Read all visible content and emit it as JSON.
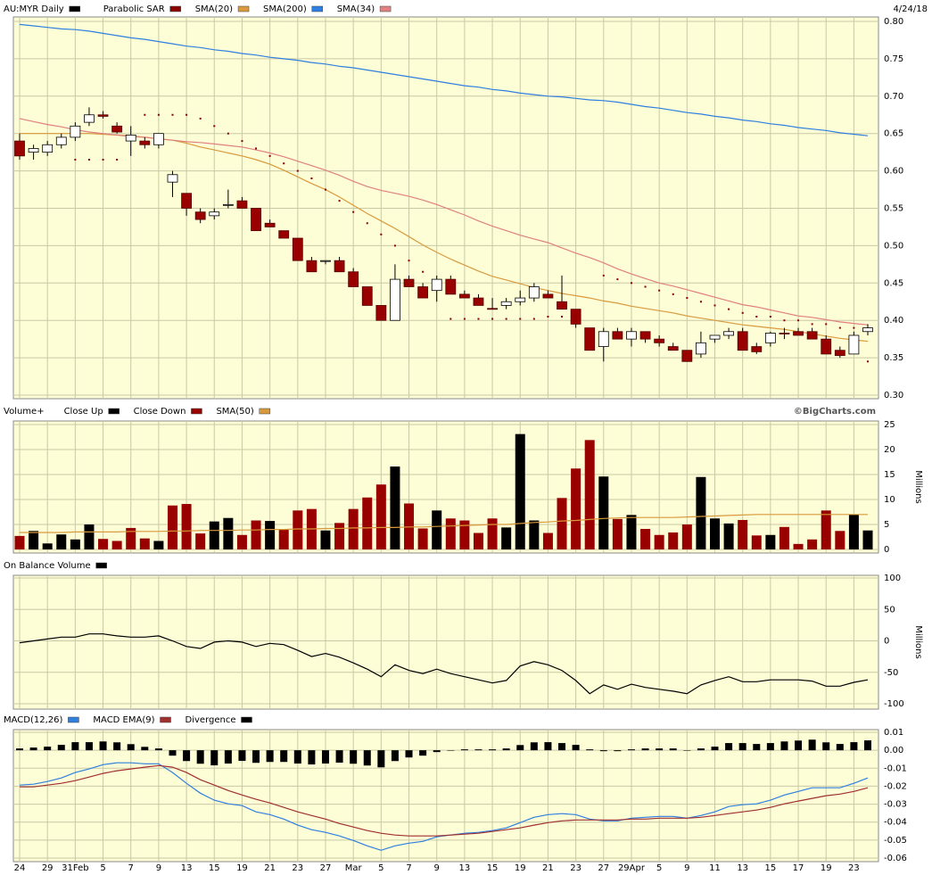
{
  "chart_data": [
    {
      "type": "candlestick",
      "title": "AU:MYR Daily",
      "date": "4/24/18",
      "color": "#000000",
      "down_color": "#990000",
      "open": [
        0.64,
        0.625,
        0.625,
        0.635,
        0.645,
        0.665,
        0.675,
        0.66,
        0.64,
        0.64,
        0.635,
        0.585,
        0.57,
        0.545,
        0.54,
        0.554,
        0.56,
        0.55,
        0.53,
        0.52,
        0.51,
        0.48,
        0.479,
        0.48,
        0.465,
        0.445,
        0.42,
        0.4,
        0.455,
        0.445,
        0.44,
        0.455,
        0.435,
        0.43,
        0.416,
        0.42,
        0.425,
        0.43,
        0.435,
        0.425,
        0.415,
        0.39,
        0.365,
        0.385,
        0.375,
        0.385,
        0.375,
        0.365,
        0.36,
        0.355,
        0.375,
        0.38,
        0.385,
        0.365,
        0.37,
        0.383,
        0.385,
        0.385,
        0.375,
        0.36,
        0.355,
        0.385
      ],
      "high": [
        0.65,
        0.635,
        0.64,
        0.65,
        0.665,
        0.685,
        0.68,
        0.665,
        0.66,
        0.645,
        0.65,
        0.6,
        0.57,
        0.55,
        0.55,
        0.575,
        0.565,
        0.55,
        0.535,
        0.52,
        0.51,
        0.485,
        0.48,
        0.485,
        0.47,
        0.445,
        0.42,
        0.475,
        0.46,
        0.45,
        0.46,
        0.46,
        0.44,
        0.435,
        0.43,
        0.43,
        0.44,
        0.45,
        0.44,
        0.46,
        0.415,
        0.39,
        0.39,
        0.39,
        0.39,
        0.385,
        0.38,
        0.37,
        0.36,
        0.385,
        0.38,
        0.39,
        0.39,
        0.37,
        0.385,
        0.39,
        0.39,
        0.39,
        0.38,
        0.365,
        0.385,
        0.395
      ],
      "low": [
        0.615,
        0.615,
        0.62,
        0.63,
        0.64,
        0.66,
        0.67,
        0.65,
        0.62,
        0.63,
        0.63,
        0.565,
        0.54,
        0.53,
        0.535,
        0.55,
        0.55,
        0.52,
        0.525,
        0.51,
        0.48,
        0.465,
        0.475,
        0.465,
        0.445,
        0.42,
        0.4,
        0.4,
        0.445,
        0.43,
        0.425,
        0.435,
        0.43,
        0.42,
        0.415,
        0.415,
        0.42,
        0.425,
        0.43,
        0.415,
        0.39,
        0.36,
        0.345,
        0.375,
        0.365,
        0.37,
        0.365,
        0.36,
        0.345,
        0.35,
        0.37,
        0.375,
        0.36,
        0.355,
        0.365,
        0.375,
        0.38,
        0.375,
        0.355,
        0.35,
        0.355,
        0.38
      ],
      "close": [
        0.62,
        0.63,
        0.635,
        0.645,
        0.66,
        0.675,
        0.673,
        0.652,
        0.648,
        0.635,
        0.65,
        0.595,
        0.55,
        0.535,
        0.545,
        0.555,
        0.55,
        0.52,
        0.525,
        0.51,
        0.48,
        0.465,
        0.48,
        0.465,
        0.445,
        0.42,
        0.4,
        0.455,
        0.445,
        0.43,
        0.455,
        0.435,
        0.43,
        0.42,
        0.415,
        0.425,
        0.43,
        0.445,
        0.43,
        0.415,
        0.395,
        0.36,
        0.385,
        0.375,
        0.385,
        0.375,
        0.37,
        0.36,
        0.345,
        0.37,
        0.38,
        0.385,
        0.36,
        0.358,
        0.383,
        0.382,
        0.38,
        0.375,
        0.355,
        0.353,
        0.38,
        0.39
      ],
      "series": [
        {
          "name": "Parabolic SAR",
          "color": "#8b0000",
          "style": "dots",
          "values": [
            null,
            null,
            null,
            null,
            0.615,
            0.615,
            0.615,
            0.615,
            null,
            0.675,
            0.675,
            0.675,
            0.675,
            0.67,
            0.66,
            0.65,
            0.64,
            0.63,
            0.62,
            0.61,
            0.6,
            0.59,
            0.575,
            0.56,
            0.545,
            0.53,
            0.515,
            0.5,
            0.48,
            0.465,
            null,
            0.402,
            0.402,
            0.402,
            0.402,
            0.402,
            0.402,
            0.402,
            0.405,
            0.405,
            0.405,
            null,
            0.46,
            0.455,
            0.45,
            0.445,
            0.44,
            0.435,
            0.43,
            0.425,
            0.42,
            0.415,
            0.41,
            0.405,
            0.405,
            0.4,
            0.4,
            0.395,
            0.395,
            0.39,
            0.39,
            0.345
          ]
        },
        {
          "name": "SMA(20)",
          "color": "#d89a3c",
          "style": "line",
          "values": [
            0.65,
            0.65,
            0.65,
            0.65,
            0.65,
            0.65,
            0.649,
            0.648,
            0.647,
            0.645,
            0.643,
            0.641,
            0.637,
            0.632,
            0.628,
            0.624,
            0.62,
            0.615,
            0.609,
            0.601,
            0.592,
            0.583,
            0.575,
            0.565,
            0.554,
            0.543,
            0.533,
            0.523,
            0.512,
            0.501,
            0.491,
            0.482,
            0.474,
            0.466,
            0.459,
            0.454,
            0.449,
            0.444,
            0.44,
            0.436,
            0.433,
            0.43,
            0.426,
            0.423,
            0.419,
            0.416,
            0.413,
            0.41,
            0.406,
            0.403,
            0.4,
            0.397,
            0.394,
            0.392,
            0.39,
            0.388,
            0.385,
            0.382,
            0.379,
            0.376,
            0.374,
            0.372
          ]
        },
        {
          "name": "SMA(200)",
          "color": "#2f7fe0",
          "style": "line",
          "values": [
            0.796,
            0.794,
            0.792,
            0.79,
            0.789,
            0.787,
            0.784,
            0.781,
            0.778,
            0.776,
            0.773,
            0.77,
            0.767,
            0.765,
            0.762,
            0.76,
            0.757,
            0.755,
            0.752,
            0.75,
            0.748,
            0.745,
            0.743,
            0.74,
            0.738,
            0.735,
            0.732,
            0.729,
            0.726,
            0.723,
            0.72,
            0.717,
            0.714,
            0.712,
            0.709,
            0.707,
            0.704,
            0.702,
            0.7,
            0.699,
            0.697,
            0.695,
            0.694,
            0.692,
            0.689,
            0.686,
            0.684,
            0.681,
            0.678,
            0.676,
            0.673,
            0.671,
            0.668,
            0.666,
            0.663,
            0.661,
            0.658,
            0.656,
            0.654,
            0.651,
            0.649,
            0.647
          ]
        },
        {
          "name": "SMA(34)",
          "color": "#e08080",
          "style": "line",
          "values": [
            0.67,
            0.666,
            0.662,
            0.659,
            0.655,
            0.652,
            0.65,
            0.648,
            0.646,
            0.645,
            0.643,
            0.641,
            0.639,
            0.638,
            0.636,
            0.634,
            0.632,
            0.628,
            0.624,
            0.619,
            0.613,
            0.607,
            0.601,
            0.594,
            0.586,
            0.579,
            0.574,
            0.57,
            0.566,
            0.561,
            0.555,
            0.548,
            0.541,
            0.533,
            0.526,
            0.52,
            0.514,
            0.509,
            0.504,
            0.497,
            0.49,
            0.484,
            0.477,
            0.469,
            0.462,
            0.456,
            0.45,
            0.446,
            0.441,
            0.436,
            0.431,
            0.426,
            0.421,
            0.418,
            0.414,
            0.41,
            0.406,
            0.404,
            0.401,
            0.398,
            0.396,
            0.394
          ]
        }
      ],
      "ylim": [
        0.3,
        0.8
      ],
      "yticks": [
        {
          "value": 0.3,
          "label": "0.30"
        },
        0.35,
        {
          "value": 0.4,
          "label": "0.40"
        },
        0.45,
        {
          "value": 0.5,
          "label": "0.50"
        },
        0.55,
        {
          "value": 0.6,
          "label": "0.60"
        },
        0.65,
        {
          "value": 0.7,
          "label": "0.70"
        },
        0.75,
        {
          "value": 0.8,
          "label": "0.80"
        }
      ],
      "grid": true
    },
    {
      "type": "volume",
      "title": "Volume+",
      "credit": "©BigCharts.com",
      "ylabel": "Millions",
      "values": [
        2.7,
        3.7,
        1.2,
        3.0,
        2.0,
        5.0,
        2.1,
        1.7,
        4.3,
        2.2,
        1.7,
        8.8,
        9.1,
        3.2,
        5.6,
        6.3,
        2.9,
        5.8,
        5.7,
        4.0,
        7.8,
        8.1,
        3.8,
        5.3,
        8.1,
        10.4,
        13.0,
        16.6,
        9.2,
        4.2,
        7.8,
        6.2,
        5.8,
        3.3,
        6.2,
        4.4,
        23.1,
        5.8,
        3.3,
        10.3,
        16.2,
        21.9,
        14.6,
        6.1,
        6.9,
        4.1,
        2.9,
        3.4,
        5.0,
        14.5,
        6.2,
        5.2,
        5.9,
        2.8,
        2.9,
        4.5,
        1.1,
        2.0,
        7.8,
        3.7,
        7.0,
        3.8
      ],
      "series": [
        {
          "name": "Close Up",
          "color": "#000000"
        },
        {
          "name": "Close Down",
          "color": "#990000"
        },
        {
          "name": "SMA(50)",
          "color": "#d89a3c",
          "values": [
            3.4,
            3.4,
            3.4,
            3.4,
            3.5,
            3.5,
            3.5,
            3.5,
            3.6,
            3.6,
            3.6,
            3.7,
            3.7,
            3.8,
            3.8,
            3.8,
            3.9,
            3.9,
            4.0,
            4.0,
            4.1,
            4.1,
            4.2,
            4.2,
            4.3,
            4.3,
            4.4,
            4.4,
            4.5,
            4.5,
            4.6,
            4.7,
            4.8,
            4.9,
            5.0,
            5.0,
            5.2,
            5.4,
            5.5,
            5.7,
            5.8,
            6.0,
            6.2,
            6.3,
            6.4,
            6.4,
            6.4,
            6.4,
            6.5,
            6.6,
            6.7,
            6.8,
            6.9,
            7.0,
            7.0,
            7.0,
            7.0,
            7.0,
            7.0,
            7.0,
            7.0,
            7.0
          ]
        }
      ],
      "ylim": [
        0,
        25
      ],
      "yticks": [
        0,
        5,
        10,
        15,
        20,
        25
      ],
      "grid": true
    },
    {
      "type": "line",
      "title": "On Balance Volume",
      "color": "#000000",
      "ylabel": "Millions",
      "values": [
        -3,
        0,
        3,
        6,
        6,
        11,
        11,
        8,
        6,
        6,
        8,
        0,
        -9,
        -12,
        -2,
        0,
        -2,
        -9,
        -4,
        -6,
        -15,
        -25,
        -20,
        -26,
        -35,
        -45,
        -57,
        -38,
        -47,
        -52,
        -45,
        -52,
        -57,
        -62,
        -67,
        -63,
        -40,
        -33,
        -38,
        -47,
        -63,
        -84,
        -70,
        -77,
        -69,
        -74,
        -77,
        -80,
        -84,
        -70,
        -63,
        -57,
        -65,
        -65,
        -62,
        -62,
        -62,
        -64,
        -72,
        -72,
        -66,
        -62
      ],
      "ylim": [
        -100,
        100
      ],
      "yticks": [
        -100,
        -50,
        0,
        50,
        100
      ],
      "grid": true
    },
    {
      "type": "macd",
      "series": [
        {
          "name": "MACD(12,26)",
          "color": "#2f7fe0",
          "style": "line",
          "values": [
            -0.0194,
            -0.0189,
            -0.0174,
            -0.0154,
            -0.0124,
            -0.0104,
            -0.008,
            -0.007,
            -0.007,
            -0.0075,
            -0.0075,
            -0.0124,
            -0.0184,
            -0.0239,
            -0.0278,
            -0.0298,
            -0.0308,
            -0.0343,
            -0.0358,
            -0.0383,
            -0.0417,
            -0.0442,
            -0.0457,
            -0.0477,
            -0.0502,
            -0.0532,
            -0.0557,
            -0.0532,
            -0.0517,
            -0.0507,
            -0.0482,
            -0.0472,
            -0.0462,
            -0.0457,
            -0.0447,
            -0.0432,
            -0.0403,
            -0.0373,
            -0.0358,
            -0.0353,
            -0.0358,
            -0.0383,
            -0.0393,
            -0.0393,
            -0.0378,
            -0.0373,
            -0.0368,
            -0.0368,
            -0.0378,
            -0.0363,
            -0.0343,
            -0.0313,
            -0.0303,
            -0.0298,
            -0.0278,
            -0.0249,
            -0.0229,
            -0.0209,
            -0.0209,
            -0.0209,
            -0.0184,
            -0.0154
          ]
        },
        {
          "name": "MACD EMA(9)",
          "color": "#a03030",
          "style": "line",
          "values": [
            -0.0204,
            -0.0204,
            -0.0194,
            -0.0184,
            -0.0169,
            -0.0149,
            -0.0129,
            -0.0114,
            -0.0104,
            -0.0094,
            -0.0085,
            -0.0094,
            -0.0124,
            -0.0164,
            -0.0194,
            -0.0224,
            -0.0249,
            -0.0273,
            -0.0293,
            -0.0318,
            -0.0343,
            -0.0363,
            -0.0383,
            -0.0408,
            -0.0427,
            -0.0447,
            -0.0462,
            -0.0472,
            -0.0477,
            -0.0477,
            -0.0477,
            -0.0472,
            -0.0467,
            -0.0462,
            -0.0452,
            -0.0442,
            -0.0432,
            -0.0417,
            -0.0403,
            -0.0393,
            -0.0388,
            -0.0388,
            -0.0388,
            -0.0388,
            -0.0383,
            -0.0383,
            -0.0378,
            -0.0378,
            -0.0378,
            -0.0373,
            -0.0363,
            -0.0353,
            -0.0343,
            -0.0333,
            -0.0318,
            -0.0298,
            -0.0283,
            -0.0268,
            -0.0253,
            -0.0244,
            -0.0229,
            -0.0209
          ]
        },
        {
          "name": "Divergence",
          "color": "#000000",
          "style": "bar",
          "values": [
            0.001,
            0.0015,
            0.002,
            0.003,
            0.0045,
            0.0045,
            0.0049,
            0.0044,
            0.0034,
            0.0019,
            0.001,
            -0.003,
            -0.006,
            -0.0075,
            -0.0084,
            -0.0074,
            -0.0059,
            -0.007,
            -0.0065,
            -0.0065,
            -0.0074,
            -0.0079,
            -0.0074,
            -0.0069,
            -0.0075,
            -0.0085,
            -0.0095,
            -0.006,
            -0.004,
            -0.003,
            -0.001,
            0,
            0.0005,
            0.0005,
            0.0005,
            0.001,
            0.0029,
            0.0044,
            0.0045,
            0.004,
            0.003,
            0.0005,
            -0.0005,
            -0.0005,
            0.0005,
            0.001,
            0.001,
            0.001,
            0,
            0.001,
            0.002,
            0.004,
            0.004,
            0.0035,
            0.004,
            0.0049,
            0.0054,
            0.0059,
            0.0044,
            0.0035,
            0.0045,
            0.0055
          ]
        }
      ],
      "categories": [
        "24",
        null,
        "29",
        null,
        "31Feb",
        null,
        "5",
        null,
        "7",
        null,
        "9",
        null,
        "13",
        null,
        "15",
        null,
        "19",
        null,
        "21",
        null,
        "23",
        null,
        "27",
        null,
        "Mar",
        null,
        "5",
        null,
        "7",
        null,
        "9",
        null,
        "13",
        null,
        "15",
        null,
        "19",
        null,
        "21",
        null,
        "23",
        null,
        "27",
        null,
        "29Apr",
        null,
        "5",
        null,
        "9",
        null,
        "11",
        null,
        "13",
        null,
        "15",
        null,
        "17",
        null,
        "19",
        null,
        "23",
        null
      ],
      "ylim": [
        -0.06,
        0.01
      ],
      "yticks": [
        -0.06,
        -0.05,
        -0.04,
        -0.03,
        -0.02,
        -0.01,
        {
          "value": 0,
          "label": "0.00"
        },
        0.01
      ],
      "grid": true
    }
  ]
}
